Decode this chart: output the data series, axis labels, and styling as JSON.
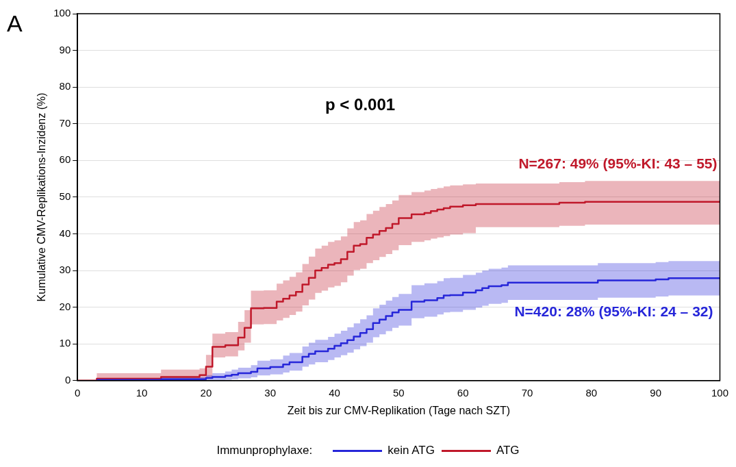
{
  "chart_data": {
    "type": "step",
    "title": "A",
    "xlabel": "Zeit bis zur CMV-Replikation (Tage nach SZT)",
    "ylabel": "Kumulative CMV-Replikations-Inzidenz (%)",
    "legend_title": "Immunprophylaxe:",
    "legend": "bottom",
    "grid": "y",
    "xlim": [
      0,
      100
    ],
    "xticks": [
      0,
      10,
      20,
      30,
      40,
      50,
      60,
      70,
      80,
      90,
      100
    ],
    "ylim": [
      0,
      100
    ],
    "yticks": [
      0,
      10,
      20,
      30,
      40,
      50,
      60,
      70,
      80,
      90,
      100
    ],
    "series": [
      {
        "name": "kein ATG",
        "color": "#2626d9",
        "x": [
          3,
          13,
          20,
          21,
          23,
          24,
          25,
          27,
          28,
          30,
          32,
          33,
          35,
          36,
          37,
          39,
          40,
          41,
          42,
          43,
          44,
          45,
          46,
          47,
          48,
          49,
          50,
          52,
          54,
          56,
          57,
          58,
          60,
          62,
          63,
          64,
          66,
          67,
          81,
          90,
          92,
          100
        ],
        "values": [
          0.2,
          0.4,
          0.7,
          1,
          1.3,
          1.6,
          2,
          2.4,
          3.3,
          3.7,
          4.4,
          5,
          6.5,
          7.3,
          8,
          8.7,
          9.5,
          10.2,
          11,
          12,
          13,
          14,
          15.7,
          16.6,
          17.6,
          18.6,
          19.3,
          21.5,
          21.9,
          22.5,
          23.2,
          23.3,
          24,
          24.6,
          25.2,
          25.7,
          26,
          26.7,
          27.3,
          27.6,
          27.9,
          27.9
        ],
        "lower": [
          0,
          0,
          0,
          0,
          0.2,
          0.4,
          0.6,
          0.9,
          1.4,
          1.7,
          2.2,
          2.7,
          3.8,
          4.4,
          5,
          5.6,
          6.3,
          6.9,
          7.6,
          8.5,
          9.4,
          10.3,
          11.8,
          12.6,
          13.5,
          14.4,
          15,
          17,
          17.4,
          18,
          18.6,
          18.7,
          19.3,
          19.9,
          20.4,
          20.9,
          21.2,
          22,
          22.6,
          22.9,
          23.2,
          23.2
        ],
        "upper": [
          0.6,
          1,
          1.5,
          2,
          2.5,
          3,
          3.5,
          4.2,
          5.4,
          5.8,
          6.8,
          7.5,
          9.3,
          10.3,
          11.1,
          11.9,
          12.8,
          13.6,
          14.5,
          15.6,
          16.7,
          17.8,
          19.7,
          20.7,
          21.8,
          22.8,
          23.6,
          26,
          26.5,
          27.1,
          27.9,
          28,
          28.8,
          29.4,
          30,
          30.5,
          30.8,
          31.4,
          32,
          32.3,
          32.6,
          32.6
        ]
      },
      {
        "name": "ATG",
        "color": "#c0182a",
        "x": [
          0,
          3,
          13,
          19,
          20,
          21,
          23,
          25,
          26,
          27,
          29,
          31,
          32,
          33,
          34,
          35,
          36,
          37,
          38,
          39,
          40,
          41,
          42,
          43,
          44,
          45,
          46,
          47,
          48,
          49,
          50,
          52,
          54,
          55,
          56,
          57,
          58,
          60,
          62,
          75,
          79,
          100
        ],
        "values": [
          0,
          0.5,
          1,
          1.5,
          3.8,
          9.2,
          9.6,
          11.7,
          14.4,
          19.7,
          19.8,
          21.5,
          22.3,
          23.2,
          24.2,
          26.2,
          28,
          30,
          30.7,
          31.6,
          32,
          33.1,
          35.1,
          36.8,
          37.2,
          38.9,
          39.8,
          40.8,
          41.6,
          42.7,
          44.3,
          45.3,
          45.7,
          46.2,
          46.6,
          47,
          47.4,
          47.8,
          48.1,
          48.5,
          48.7,
          48.7
        ],
        "lower": [
          0,
          0,
          0,
          0,
          0.5,
          6.3,
          6.6,
          8.2,
          10.3,
          15.3,
          15.4,
          16.4,
          17.1,
          17.9,
          18.8,
          20.5,
          22.1,
          23.9,
          24.5,
          25.4,
          25.8,
          26.8,
          28.6,
          30.1,
          30.5,
          32,
          32.8,
          33.7,
          34.5,
          35.5,
          36.9,
          37.8,
          38.2,
          38.7,
          39,
          39.4,
          39.8,
          40.2,
          41.8,
          42.2,
          42.5,
          42.5
        ],
        "upper": [
          0,
          2,
          3,
          3.3,
          7,
          12.8,
          13.2,
          16,
          19.2,
          24.5,
          24.6,
          26.4,
          27.3,
          28.3,
          29.5,
          31.8,
          33.8,
          36,
          36.8,
          37.8,
          38.2,
          39.3,
          41.5,
          43.2,
          43.7,
          45.4,
          46.3,
          47.3,
          48.1,
          49.1,
          50.6,
          51.4,
          51.8,
          52.2,
          52.5,
          52.9,
          53.2,
          53.5,
          53.7,
          54.1,
          54.4,
          54.4
        ]
      }
    ],
    "annotations": [
      "p < 0.001",
      "N=267: 49% (95%-KI: 43 – 55)",
      "N=420: 28% (95%-KI: 24 – 32)"
    ]
  }
}
